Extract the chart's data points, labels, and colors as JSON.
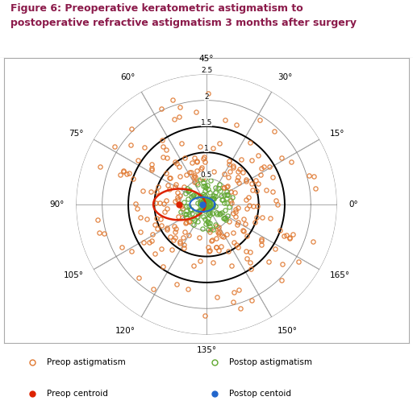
{
  "title": "Figure 6: Preoperative keratometric astigmatism to\npostoperative refractive astigmatism 3 months after surgery",
  "title_color": "#8B1A4A",
  "background_color": "#ffffff",
  "border_color": "#aaaaaa",
  "r_max": 2.5,
  "r_ticks": [
    0.5,
    1.0,
    1.5,
    2.0,
    2.5
  ],
  "r_tick_labels": [
    "0.5",
    "1",
    "1.5",
    "2",
    "2.5"
  ],
  "preop_color": "#E07830",
  "postop_color": "#60A830",
  "preop_centroid_color": "#DD2200",
  "postop_centroid_color": "#2266CC",
  "angle_labels": [
    [
      90,
      "45°",
      "center",
      "bottom"
    ],
    [
      60,
      "60°",
      "right",
      "center"
    ],
    [
      30,
      "75°",
      "right",
      "center"
    ],
    [
      0,
      "90°",
      "right",
      "center"
    ],
    [
      -30,
      "105°",
      "right",
      "center"
    ],
    [
      -60,
      "120°",
      "center",
      "top"
    ],
    [
      -90,
      "135°",
      "center",
      "top"
    ],
    [
      -120,
      "150°",
      "left",
      "center"
    ],
    [
      -150,
      "165°",
      "left",
      "center"
    ],
    [
      180,
      "0°",
      "left",
      "center"
    ],
    [
      150,
      "15°",
      "left",
      "center"
    ],
    [
      120,
      "30°",
      "left",
      "center"
    ]
  ],
  "circle_radii": [
    0.5,
    1.0,
    1.5,
    2.0,
    2.5
  ],
  "circle_colors": [
    "#888888",
    "#000000",
    "#000000",
    "#888888",
    "#888888"
  ],
  "circle_lws": [
    0.6,
    1.4,
    1.4,
    0.6,
    0.6
  ],
  "legend_items": [
    {
      "label": "Preop astigmatism",
      "color": "#E07830",
      "filled": false
    },
    {
      "label": "Postop astigmatism",
      "color": "#60A830",
      "filled": false
    },
    {
      "label": "Preop centroid",
      "color": "#DD2200",
      "filled": true
    },
    {
      "label": "Postop centoid",
      "color": "#2266CC",
      "filled": true
    }
  ]
}
